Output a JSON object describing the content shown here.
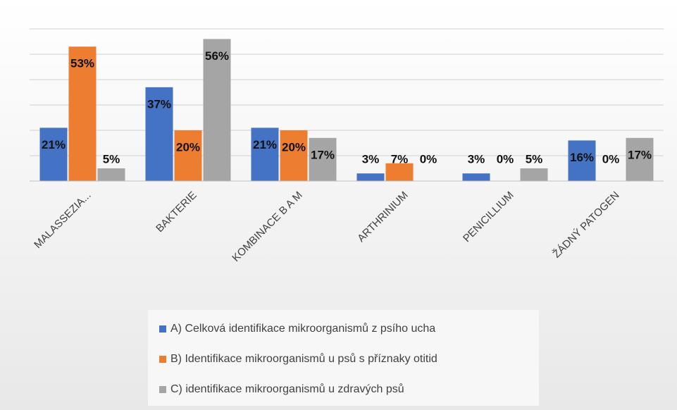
{
  "chart_data": {
    "type": "bar",
    "categories": [
      "MALASSEZIA...",
      "BAKTERIE",
      "KOMBINACE B A M",
      "ARTHRINIUM",
      "PENICILLIUM",
      "ŽÁDNÝ PATOGEN"
    ],
    "series": [
      {
        "name": "A) Celková identifikace mikroorganismů z psího ucha",
        "color": "#4472c4",
        "values": [
          21,
          37,
          21,
          3,
          3,
          16
        ],
        "value_labels": [
          "21%",
          "37%",
          "21%",
          "3%",
          "3%",
          "16%"
        ]
      },
      {
        "name": "B) Identifikace mikroorganismů u psů s příznaky otitid",
        "color": "#ed7d31",
        "values": [
          53,
          20,
          20,
          7,
          0,
          0
        ],
        "value_labels": [
          "53%",
          "20%",
          "20%",
          "7%",
          "0%",
          "0%"
        ]
      },
      {
        "name": "C) identifikace mikroorganismů u zdravých psů",
        "color": "#a5a5a5",
        "values": [
          5,
          56,
          17,
          0,
          5,
          17
        ],
        "value_labels": [
          "5%",
          "56%",
          "17%",
          "0%",
          "5%",
          "17%"
        ]
      }
    ],
    "ylim": [
      0,
      60
    ],
    "yticks": [
      0,
      10,
      20,
      30,
      40,
      50,
      60
    ],
    "grid": true
  }
}
